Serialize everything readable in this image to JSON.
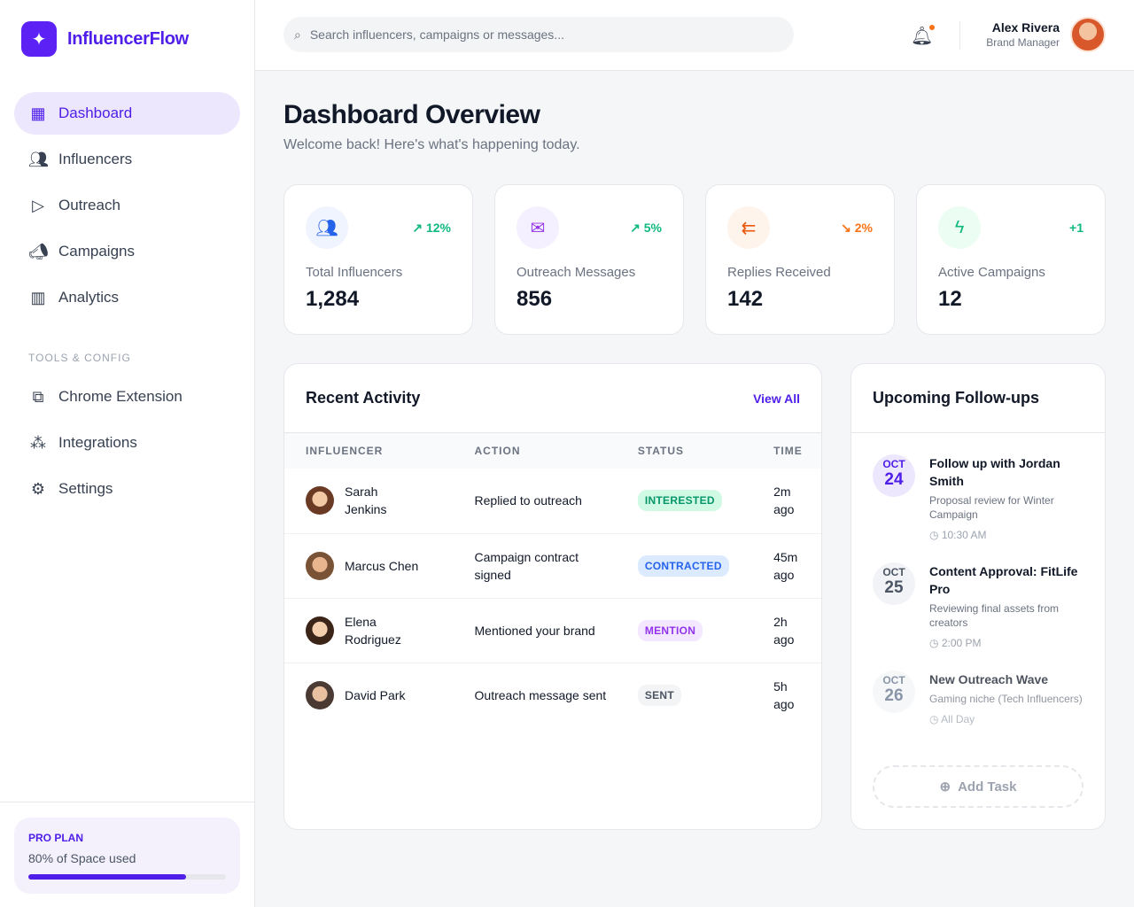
{
  "app": {
    "name": "InfluencerFlow"
  },
  "sidebar": {
    "items": [
      {
        "label": "Dashboard"
      },
      {
        "label": "Influencers"
      },
      {
        "label": "Outreach"
      },
      {
        "label": "Campaigns"
      },
      {
        "label": "Analytics"
      }
    ],
    "section_label": "TOOLS & CONFIG",
    "tools": [
      {
        "label": "Chrome Extension"
      },
      {
        "label": "Integrations"
      },
      {
        "label": "Settings"
      }
    ],
    "plan": {
      "title": "PRO PLAN",
      "usage_text": "80% of Space used",
      "usage_percent": 80
    }
  },
  "header": {
    "search_placeholder": "Search influencers, campaigns or messages...",
    "user_name": "Alex Rivera",
    "user_role": "Brand Manager"
  },
  "page": {
    "title": "Dashboard Overview",
    "subtitle": "Welcome back! Here's what's happening today."
  },
  "stats": [
    {
      "label": "Total Influencers",
      "value": "1,284",
      "change": "12%",
      "trend": "up",
      "color": "#2563eb"
    },
    {
      "label": "Outreach Messages",
      "value": "856",
      "change": "5%",
      "trend": "up",
      "color": "#9333ea"
    },
    {
      "label": "Replies Received",
      "value": "142",
      "change": "2%",
      "trend": "down",
      "color": "#ea580c"
    },
    {
      "label": "Active Campaigns",
      "value": "12",
      "change": "+1",
      "trend": "none",
      "color": "#16a34a"
    }
  ],
  "activity": {
    "title": "Recent Activity",
    "view_all": "View All",
    "columns": [
      "INFLUENCER",
      "ACTION",
      "STATUS",
      "TIME"
    ],
    "rows": [
      {
        "name": "Sarah Jenkins",
        "action": "Replied to outreach",
        "status": "INTERESTED",
        "time": "2m ago"
      },
      {
        "name": "Marcus Chen",
        "action": "Campaign contract signed",
        "status": "CONTRACTED",
        "time": "45m ago"
      },
      {
        "name": "Elena Rodriguez",
        "action": "Mentioned your brand",
        "status": "MENTION",
        "time": "2h ago"
      },
      {
        "name": "David Park",
        "action": "Outreach message sent",
        "status": "SENT",
        "time": "5h ago"
      }
    ]
  },
  "followups": {
    "title": "Upcoming Follow-ups",
    "add_task": "Add Task",
    "items": [
      {
        "month": "OCT",
        "day": "24",
        "title": "Follow up with Jordan Smith",
        "desc": "Proposal review for Winter Campaign",
        "time": "10:30 AM"
      },
      {
        "month": "OCT",
        "day": "25",
        "title": "Content Approval: FitLife Pro",
        "desc": "Reviewing final assets from creators",
        "time": "2:00 PM"
      },
      {
        "month": "OCT",
        "day": "26",
        "title": "New Outreach Wave",
        "desc": "Gaming niche (Tech Influencers)",
        "time": "All Day"
      }
    ]
  }
}
